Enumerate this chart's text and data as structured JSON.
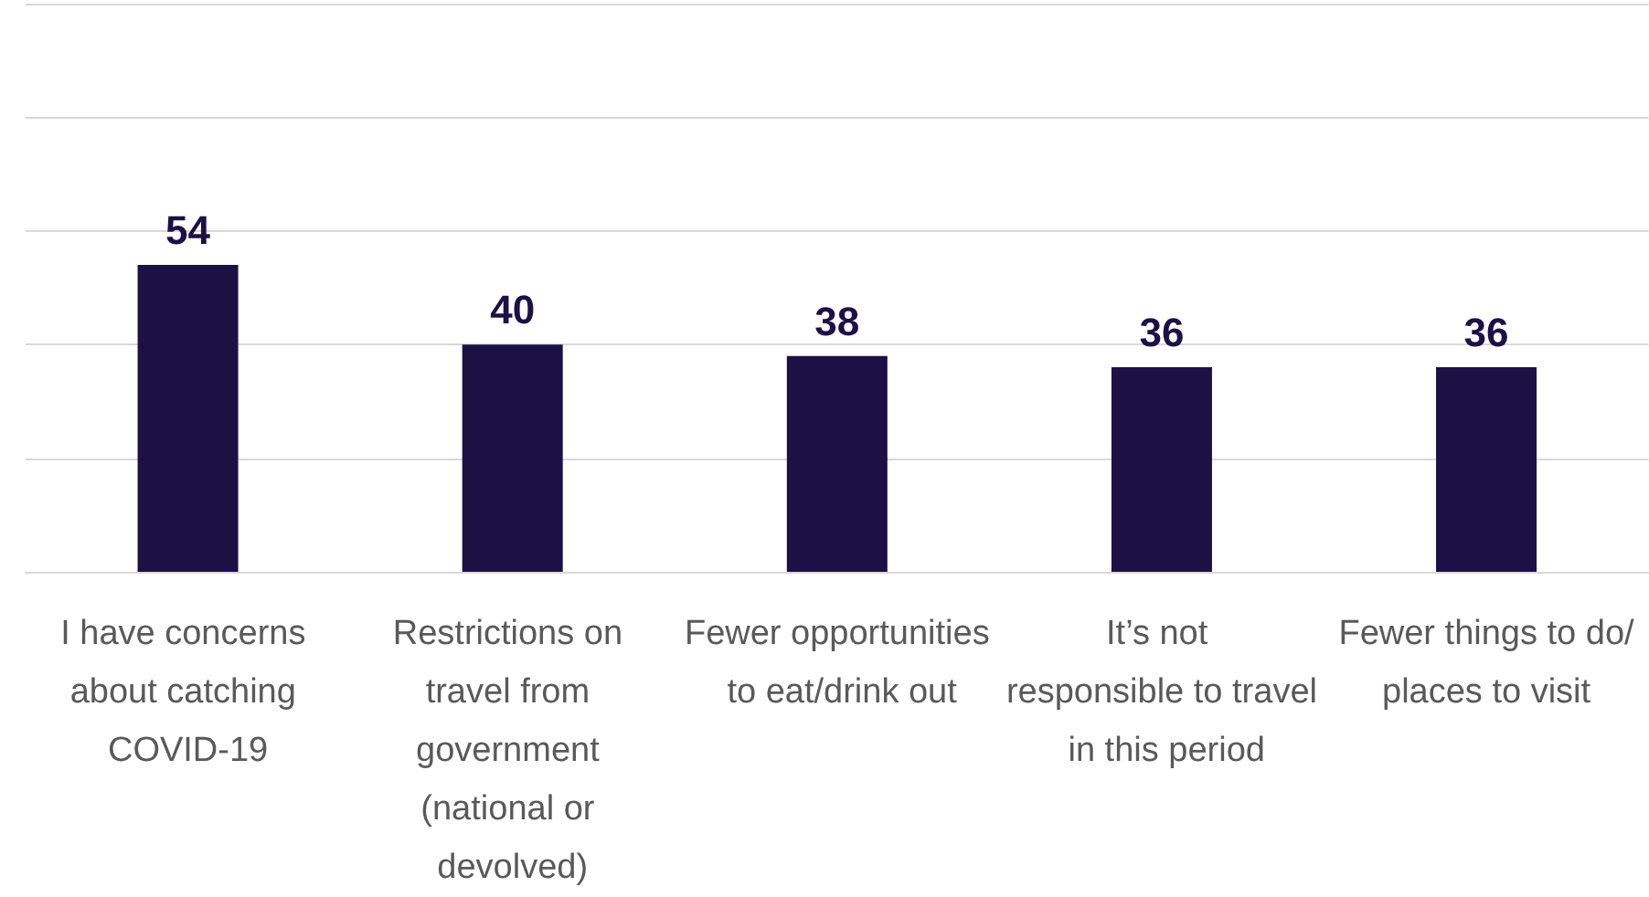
{
  "chart_data": {
    "type": "bar",
    "categories": [
      "I have concerns about catching COVID-19",
      "Restrictions on travel from government (national or devolved)",
      "Fewer opportunities to eat/drink out",
      "It’s not responsible to travel in this period",
      "Fewer things to do/places to visit"
    ],
    "values": [
      54,
      40,
      38,
      36,
      36
    ],
    "color": "#1b1145",
    "ylim": [
      0,
      100
    ],
    "yticks": [
      {
        "value": 0,
        "label": null
      },
      {
        "value": 20,
        "label": null
      },
      {
        "value": 40,
        "label": null
      },
      {
        "value": 60,
        "label": null
      },
      {
        "value": 80,
        "label": null
      },
      {
        "value": 100,
        "label": null
      }
    ],
    "grid": "y",
    "tick_labels": "x",
    "data_labels": true
  }
}
